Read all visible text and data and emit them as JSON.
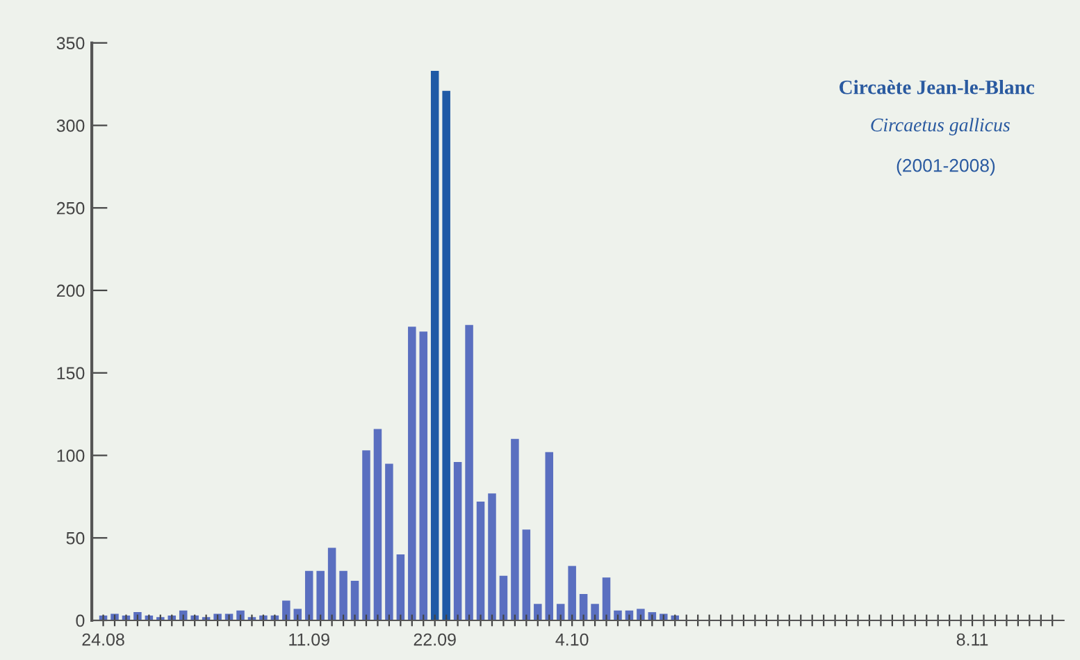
{
  "chart_data": {
    "type": "bar",
    "title": "Circaète Jean-le-Blanc",
    "subtitle": "Circaetus gallicus",
    "annotations": [
      "(2001-2008)"
    ],
    "categories": [
      "24.08",
      null,
      null,
      null,
      null,
      null,
      null,
      null,
      null,
      null,
      null,
      null,
      null,
      null,
      null,
      null,
      null,
      null,
      "11.09",
      null,
      null,
      null,
      null,
      null,
      null,
      null,
      null,
      null,
      null,
      "22.09",
      null,
      null,
      null,
      null,
      null,
      null,
      null,
      null,
      null,
      null,
      null,
      "4.10",
      null,
      null,
      null,
      null,
      null,
      null,
      null,
      null,
      null,
      null,
      null,
      null,
      null,
      null,
      null,
      null,
      null,
      null,
      null,
      null,
      null,
      null,
      null,
      null,
      null,
      null,
      null,
      null,
      null,
      null,
      null,
      null,
      null,
      null,
      "8.11",
      null,
      null,
      null,
      null,
      null,
      null,
      null
    ],
    "values": [
      3,
      4,
      3,
      5,
      3,
      2,
      3,
      6,
      3,
      2,
      4,
      4,
      6,
      2,
      3,
      3,
      12,
      7,
      30,
      30,
      44,
      30,
      24,
      103,
      116,
      95,
      40,
      178,
      175,
      333,
      321,
      96,
      179,
      72,
      77,
      27,
      110,
      55,
      10,
      102,
      10,
      33,
      16,
      10,
      26,
      6,
      6,
      7,
      5,
      4,
      3,
      0,
      0,
      0,
      0,
      0,
      0,
      0,
      0,
      0,
      0,
      0,
      0,
      0,
      0,
      0,
      0,
      0,
      0,
      0,
      0,
      0,
      0,
      0,
      0,
      0,
      0,
      0,
      0,
      0,
      0,
      0,
      0,
      0
    ],
    "colors": [
      "#5a6fc0",
      "#5a6fc0",
      "#5a6fc0",
      "#5a6fc0",
      "#5a6fc0",
      "#5a6fc0",
      "#5a6fc0",
      "#5a6fc0",
      "#5a6fc0",
      "#5a6fc0",
      "#5a6fc0",
      "#5a6fc0",
      "#5a6fc0",
      "#5a6fc0",
      "#5a6fc0",
      "#5a6fc0",
      "#5a6fc0",
      "#5a6fc0",
      "#5a6fc0",
      "#5a6fc0",
      "#5a6fc0",
      "#5a6fc0",
      "#5a6fc0",
      "#5a6fc0",
      "#5a6fc0",
      "#5a6fc0",
      "#5a6fc0",
      "#5a6fc0",
      "#5a6fc0",
      "#1f5aa6",
      "#1f5aa6",
      "#5a6fc0",
      "#5a6fc0",
      "#5a6fc0",
      "#5a6fc0",
      "#5a6fc0",
      "#5a6fc0",
      "#5a6fc0",
      "#5a6fc0",
      "#5a6fc0",
      "#5a6fc0",
      "#5a6fc0",
      "#5a6fc0",
      "#5a6fc0",
      "#5a6fc0",
      "#5a6fc0",
      "#5a6fc0",
      "#5a6fc0",
      "#5a6fc0",
      "#5a6fc0",
      "#5a6fc0",
      "#5a6fc0",
      "#5a6fc0",
      "#5a6fc0",
      "#5a6fc0",
      "#5a6fc0",
      "#5a6fc0",
      "#5a6fc0",
      "#5a6fc0",
      "#5a6fc0",
      "#5a6fc0",
      "#5a6fc0",
      "#5a6fc0",
      "#5a6fc0",
      "#5a6fc0",
      "#5a6fc0",
      "#5a6fc0",
      "#5a6fc0",
      "#5a6fc0",
      "#5a6fc0",
      "#5a6fc0",
      "#5a6fc0",
      "#5a6fc0",
      "#5a6fc0",
      "#5a6fc0",
      "#5a6fc0",
      "#5a6fc0",
      "#5a6fc0",
      "#5a6fc0",
      "#5a6fc0",
      "#5a6fc0",
      "#5a6fc0",
      "#5a6fc0",
      "#5a6fc0"
    ],
    "ylim": [
      0,
      350
    ],
    "yticks": [
      0,
      50,
      100,
      150,
      200,
      250,
      300,
      350
    ],
    "grid": false,
    "legend": false
  }
}
